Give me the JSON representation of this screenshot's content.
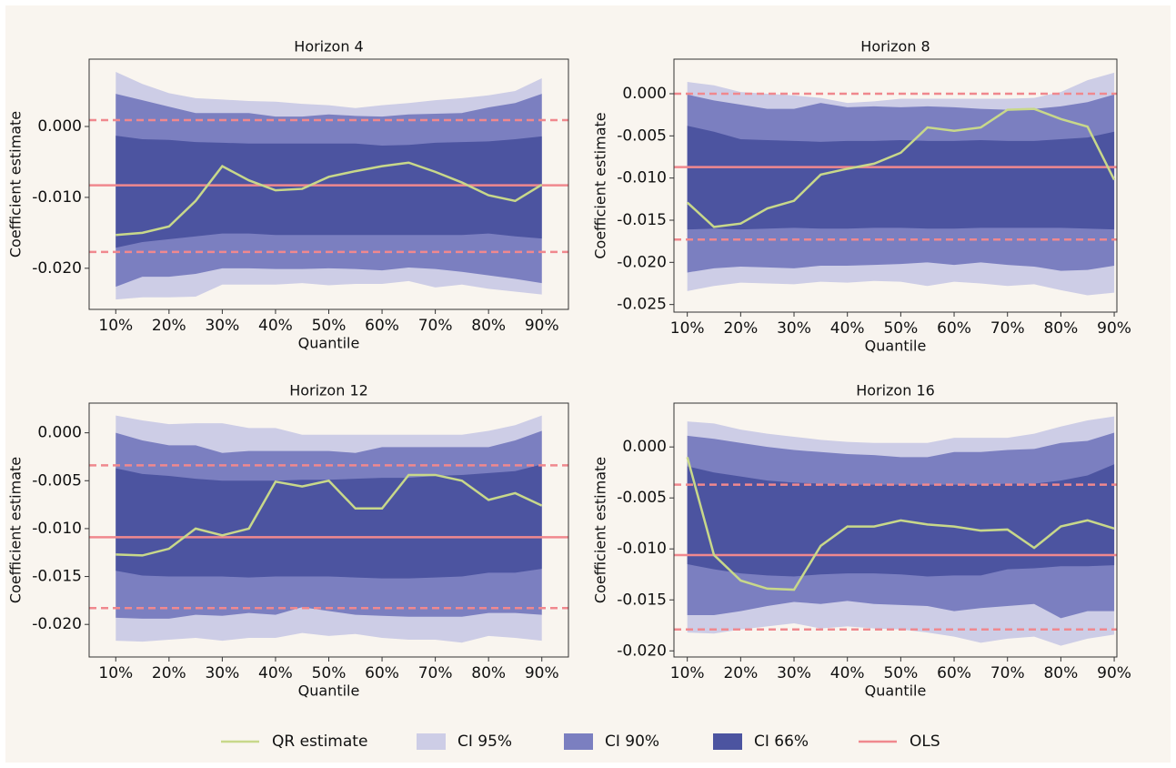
{
  "chart_data": [
    {
      "type": "line",
      "title": "Horizon 4",
      "xlabel": "Quantile",
      "ylabel": "Coefficient estimate",
      "x": [
        10,
        15,
        20,
        25,
        30,
        35,
        40,
        45,
        50,
        55,
        60,
        65,
        70,
        75,
        80,
        85,
        90
      ],
      "xlim": [
        5,
        95
      ],
      "ylim": [
        -0.0258,
        0.0095
      ],
      "xticks": [
        {
          "value": 10,
          "label": "10%"
        },
        {
          "value": 20,
          "label": "20%"
        },
        {
          "value": 30,
          "label": "30%"
        },
        {
          "value": 40,
          "label": "40%"
        },
        {
          "value": 50,
          "label": "50%"
        },
        {
          "value": 60,
          "label": "60%"
        },
        {
          "value": 70,
          "label": "70%"
        },
        {
          "value": 80,
          "label": "80%"
        },
        {
          "value": 90,
          "label": "90%"
        }
      ],
      "yticks": [
        {
          "value": 0,
          "label": "0.000"
        },
        {
          "value": -0.01,
          "label": "-0.010"
        },
        {
          "value": -0.02,
          "label": "-0.020"
        }
      ],
      "series": [
        {
          "name": "QR estimate",
          "color": "#c8d88a",
          "values": [
            -0.0153,
            -0.015,
            -0.0141,
            -0.0105,
            -0.0056,
            -0.0076,
            -0.009,
            -0.0088,
            -0.0071,
            -0.0063,
            -0.0056,
            -0.0051,
            -0.0064,
            -0.0079,
            -0.0097,
            -0.0105,
            -0.0082
          ]
        },
        {
          "name": "CI 95%",
          "color": "#cdcde6",
          "upper": [
            0.0077,
            0.006,
            0.0047,
            0.004,
            0.0038,
            0.0036,
            0.0035,
            0.0032,
            0.003,
            0.0026,
            0.003,
            0.0033,
            0.0037,
            0.004,
            0.0044,
            0.005,
            0.0068
          ],
          "lower": [
            -0.0244,
            -0.0241,
            -0.0241,
            -0.024,
            -0.0223,
            -0.0223,
            -0.0223,
            -0.0221,
            -0.0224,
            -0.0222,
            -0.0222,
            -0.0218,
            -0.0227,
            -0.0223,
            -0.0229,
            -0.0233,
            -0.0237
          ]
        },
        {
          "name": "CI 90%",
          "color": "#7b7fc0",
          "upper": [
            0.0046,
            0.0037,
            0.0028,
            0.0019,
            0.0019,
            0.0019,
            0.0014,
            0.0014,
            0.0017,
            0.0015,
            0.0014,
            0.0017,
            0.0018,
            0.0019,
            0.0027,
            0.0033,
            0.0046
          ],
          "lower": [
            -0.0226,
            -0.0212,
            -0.0212,
            -0.0208,
            -0.02,
            -0.02,
            -0.0201,
            -0.0201,
            -0.02,
            -0.0201,
            -0.0203,
            -0.0199,
            -0.0201,
            -0.0205,
            -0.021,
            -0.0215,
            -0.0221
          ]
        },
        {
          "name": "CI 66%",
          "color": "#4c54a0",
          "upper": [
            -0.0013,
            -0.0018,
            -0.0019,
            -0.0022,
            -0.0023,
            -0.0024,
            -0.0024,
            -0.0024,
            -0.0024,
            -0.0024,
            -0.0027,
            -0.0026,
            -0.0023,
            -0.0022,
            -0.0021,
            -0.0018,
            -0.0014
          ],
          "lower": [
            -0.0171,
            -0.0163,
            -0.0159,
            -0.0155,
            -0.0151,
            -0.0151,
            -0.0153,
            -0.0153,
            -0.0153,
            -0.0153,
            -0.0153,
            -0.0153,
            -0.0153,
            -0.0153,
            -0.0151,
            -0.0155,
            -0.0158
          ]
        },
        {
          "name": "OLS",
          "color": "#f0888e",
          "value": -0.0083,
          "ci": [
            0.0009,
            -0.0177
          ]
        }
      ]
    },
    {
      "type": "line",
      "title": "Horizon 8",
      "xlabel": "Quantile",
      "ylabel": "Coefficient estimate",
      "x": [
        10,
        15,
        20,
        25,
        30,
        35,
        40,
        45,
        50,
        55,
        60,
        65,
        70,
        75,
        80,
        85,
        90
      ],
      "xlim": [
        7.5,
        90.5
      ],
      "ylim": [
        -0.0259,
        0.0041
      ],
      "xticks": [
        {
          "value": 10,
          "label": "10%"
        },
        {
          "value": 20,
          "label": "20%"
        },
        {
          "value": 30,
          "label": "30%"
        },
        {
          "value": 40,
          "label": "40%"
        },
        {
          "value": 50,
          "label": "50%"
        },
        {
          "value": 60,
          "label": "60%"
        },
        {
          "value": 70,
          "label": "70%"
        },
        {
          "value": 80,
          "label": "80%"
        },
        {
          "value": 90,
          "label": "90%"
        }
      ],
      "yticks": [
        {
          "value": 0,
          "label": "0.000"
        },
        {
          "value": -0.005,
          "label": "-0.005"
        },
        {
          "value": -0.01,
          "label": "-0.010"
        },
        {
          "value": -0.015,
          "label": "-0.015"
        },
        {
          "value": -0.02,
          "label": "-0.020"
        },
        {
          "value": -0.025,
          "label": "-0.025"
        }
      ],
      "series": [
        {
          "name": "QR estimate",
          "color": "#c8d88a",
          "values": [
            -0.0129,
            -0.0158,
            -0.0154,
            -0.0136,
            -0.0127,
            -0.0096,
            -0.0089,
            -0.0083,
            -0.007,
            -0.004,
            -0.0044,
            -0.004,
            -0.0019,
            -0.0018,
            -0.003,
            -0.0039,
            -0.0102
          ]
        },
        {
          "name": "CI 95%",
          "color": "#cdcde6",
          "upper": [
            0.0014,
            0.001,
            0.0002,
            0.0,
            -0.0002,
            -0.0005,
            -0.0011,
            -0.0009,
            -0.0006,
            -0.0006,
            -0.0006,
            -0.0006,
            -0.0006,
            -0.0005,
            0.0002,
            0.0016,
            0.0025
          ],
          "lower": [
            -0.0234,
            -0.0228,
            -0.0224,
            -0.0225,
            -0.0226,
            -0.0223,
            -0.0224,
            -0.0222,
            -0.0223,
            -0.0228,
            -0.0223,
            -0.0225,
            -0.0228,
            -0.0226,
            -0.0233,
            -0.0239,
            -0.0236
          ]
        },
        {
          "name": "CI 90%",
          "color": "#7b7fc0",
          "upper": [
            -0.0001,
            -0.0008,
            -0.0013,
            -0.0018,
            -0.0018,
            -0.0011,
            -0.0016,
            -0.0015,
            -0.0016,
            -0.0015,
            -0.0016,
            -0.0018,
            -0.0019,
            -0.0018,
            -0.0015,
            -0.001,
            -0.0001
          ],
          "lower": [
            -0.0212,
            -0.0207,
            -0.0205,
            -0.0206,
            -0.0207,
            -0.0204,
            -0.0204,
            -0.0203,
            -0.0202,
            -0.02,
            -0.0203,
            -0.02,
            -0.0203,
            -0.0205,
            -0.021,
            -0.0209,
            -0.0204
          ]
        },
        {
          "name": "CI 66%",
          "color": "#4c54a0",
          "upper": [
            -0.0038,
            -0.0045,
            -0.0054,
            -0.0055,
            -0.0056,
            -0.0057,
            -0.0056,
            -0.0056,
            -0.0055,
            -0.0056,
            -0.0056,
            -0.0055,
            -0.0056,
            -0.0056,
            -0.0054,
            -0.0052,
            -0.0045
          ],
          "lower": [
            -0.0161,
            -0.016,
            -0.0161,
            -0.016,
            -0.0159,
            -0.016,
            -0.016,
            -0.0159,
            -0.0159,
            -0.016,
            -0.016,
            -0.0159,
            -0.0159,
            -0.0159,
            -0.0159,
            -0.016,
            -0.0161
          ]
        },
        {
          "name": "OLS",
          "color": "#f0888e",
          "value": -0.0087,
          "ci": [
            0.0,
            -0.0173
          ]
        }
      ]
    },
    {
      "type": "line",
      "title": "Horizon 12",
      "xlabel": "Quantile",
      "ylabel": "Coefficient estimate",
      "x": [
        10,
        15,
        20,
        25,
        30,
        35,
        40,
        45,
        50,
        55,
        60,
        65,
        70,
        75,
        80,
        85,
        90
      ],
      "xlim": [
        5,
        95
      ],
      "ylim": [
        -0.0234,
        0.0031
      ],
      "xticks": [
        {
          "value": 10,
          "label": "10%"
        },
        {
          "value": 20,
          "label": "20%"
        },
        {
          "value": 30,
          "label": "30%"
        },
        {
          "value": 40,
          "label": "40%"
        },
        {
          "value": 50,
          "label": "50%"
        },
        {
          "value": 60,
          "label": "60%"
        },
        {
          "value": 70,
          "label": "70%"
        },
        {
          "value": 80,
          "label": "80%"
        },
        {
          "value": 90,
          "label": "90%"
        }
      ],
      "yticks": [
        {
          "value": 0,
          "label": "0.000"
        },
        {
          "value": -0.005,
          "label": "-0.005"
        },
        {
          "value": -0.01,
          "label": "-0.010"
        },
        {
          "value": -0.015,
          "label": "-0.015"
        },
        {
          "value": -0.02,
          "label": "-0.020"
        }
      ],
      "series": [
        {
          "name": "QR estimate",
          "color": "#c8d88a",
          "values": [
            -0.0127,
            -0.0128,
            -0.0121,
            -0.01,
            -0.0107,
            -0.01,
            -0.0051,
            -0.0056,
            -0.005,
            -0.0079,
            -0.0079,
            -0.0044,
            -0.0044,
            -0.005,
            -0.007,
            -0.0063,
            -0.0076
          ]
        },
        {
          "name": "CI 95%",
          "color": "#cdcde6",
          "upper": [
            0.0018,
            0.0013,
            0.0009,
            0.001,
            0.001,
            0.0005,
            0.0005,
            -0.0002,
            -0.0002,
            -0.0002,
            -0.0002,
            -0.0002,
            -0.0002,
            -0.0002,
            0.0002,
            0.0008,
            0.0018
          ],
          "lower": [
            -0.0217,
            -0.0218,
            -0.0216,
            -0.0214,
            -0.0217,
            -0.0214,
            -0.0214,
            -0.0209,
            -0.0212,
            -0.021,
            -0.0214,
            -0.0216,
            -0.0216,
            -0.0219,
            -0.0212,
            -0.0214,
            -0.0217
          ]
        },
        {
          "name": "CI 90%",
          "color": "#7b7fc0",
          "upper": [
            0.0,
            -0.0008,
            -0.0013,
            -0.0013,
            -0.0021,
            -0.0019,
            -0.0019,
            -0.0019,
            -0.0019,
            -0.0021,
            -0.0015,
            -0.0015,
            -0.0015,
            -0.0015,
            -0.0015,
            -0.0008,
            0.0002
          ],
          "lower": [
            -0.0193,
            -0.0194,
            -0.0194,
            -0.019,
            -0.0191,
            -0.0188,
            -0.019,
            -0.0182,
            -0.0186,
            -0.019,
            -0.0191,
            -0.0192,
            -0.0192,
            -0.0192,
            -0.0188,
            -0.0188,
            -0.019
          ]
        },
        {
          "name": "CI 66%",
          "color": "#4c54a0",
          "upper": [
            -0.0037,
            -0.0043,
            -0.0045,
            -0.0048,
            -0.005,
            -0.005,
            -0.005,
            -0.0049,
            -0.0049,
            -0.0048,
            -0.0047,
            -0.0047,
            -0.0045,
            -0.0044,
            -0.0042,
            -0.004,
            -0.0033
          ],
          "lower": [
            -0.0144,
            -0.0149,
            -0.015,
            -0.015,
            -0.015,
            -0.0151,
            -0.015,
            -0.015,
            -0.015,
            -0.0151,
            -0.0152,
            -0.0152,
            -0.0151,
            -0.015,
            -0.0146,
            -0.0146,
            -0.0142
          ]
        },
        {
          "name": "OLS",
          "color": "#f0888e",
          "value": -0.0109,
          "ci": [
            -0.0034,
            -0.0183
          ]
        }
      ]
    },
    {
      "type": "line",
      "title": "Horizon 16",
      "xlabel": "Quantile",
      "ylabel": "Coefficient estimate",
      "x": [
        10,
        15,
        20,
        25,
        30,
        35,
        40,
        45,
        50,
        55,
        60,
        65,
        70,
        75,
        80,
        85,
        90
      ],
      "xlim": [
        7.5,
        90.5
      ],
      "ylim": [
        -0.0206,
        0.0043
      ],
      "xticks": [
        {
          "value": 10,
          "label": "10%"
        },
        {
          "value": 20,
          "label": "20%"
        },
        {
          "value": 30,
          "label": "30%"
        },
        {
          "value": 40,
          "label": "40%"
        },
        {
          "value": 50,
          "label": "50%"
        },
        {
          "value": 60,
          "label": "60%"
        },
        {
          "value": 70,
          "label": "70%"
        },
        {
          "value": 80,
          "label": "80%"
        },
        {
          "value": 90,
          "label": "90%"
        }
      ],
      "yticks": [
        {
          "value": 0,
          "label": "0.000"
        },
        {
          "value": -0.005,
          "label": "-0.005"
        },
        {
          "value": -0.01,
          "label": "-0.010"
        },
        {
          "value": -0.015,
          "label": "-0.015"
        },
        {
          "value": -0.02,
          "label": "-0.020"
        }
      ],
      "series": [
        {
          "name": "QR estimate",
          "color": "#c8d88a",
          "values": [
            -0.001,
            -0.0106,
            -0.0131,
            -0.0139,
            -0.014,
            -0.0097,
            -0.0078,
            -0.0078,
            -0.0072,
            -0.0076,
            -0.0078,
            -0.0082,
            -0.0081,
            -0.0099,
            -0.0078,
            -0.0072,
            -0.008
          ]
        },
        {
          "name": "CI 95%",
          "color": "#cdcde6",
          "upper": [
            0.0025,
            0.0023,
            0.0017,
            0.0013,
            0.001,
            0.0007,
            0.0005,
            0.0004,
            0.0004,
            0.0004,
            0.0009,
            0.0009,
            0.0009,
            0.0013,
            0.002,
            0.0026,
            0.003
          ],
          "lower": [
            -0.0182,
            -0.0183,
            -0.0179,
            -0.0176,
            -0.0173,
            -0.0178,
            -0.0176,
            -0.0178,
            -0.0179,
            -0.0182,
            -0.0186,
            -0.0192,
            -0.0188,
            -0.0186,
            -0.0195,
            -0.0188,
            -0.0184
          ]
        },
        {
          "name": "CI 90%",
          "color": "#7b7fc0",
          "upper": [
            0.0011,
            0.0008,
            0.0004,
            0.0,
            -0.0003,
            -0.0005,
            -0.0007,
            -0.0008,
            -0.001,
            -0.001,
            -0.0005,
            -0.0005,
            -0.0003,
            -0.0002,
            0.0004,
            0.0006,
            0.0014
          ],
          "lower": [
            -0.0165,
            -0.0165,
            -0.0161,
            -0.0156,
            -0.0152,
            -0.0154,
            -0.0151,
            -0.0154,
            -0.0155,
            -0.0156,
            -0.0161,
            -0.0158,
            -0.0156,
            -0.0154,
            -0.0168,
            -0.0161,
            -0.0161
          ]
        },
        {
          "name": "CI 66%",
          "color": "#4c54a0",
          "upper": [
            -0.0019,
            -0.0025,
            -0.0029,
            -0.0033,
            -0.0035,
            -0.0036,
            -0.0037,
            -0.0037,
            -0.0037,
            -0.0037,
            -0.0037,
            -0.0037,
            -0.0036,
            -0.0036,
            -0.0033,
            -0.0028,
            -0.0017
          ],
          "lower": [
            -0.0115,
            -0.012,
            -0.0124,
            -0.0126,
            -0.0127,
            -0.0125,
            -0.0124,
            -0.0124,
            -0.0125,
            -0.0127,
            -0.0126,
            -0.0126,
            -0.012,
            -0.0119,
            -0.0117,
            -0.0117,
            -0.0116
          ]
        },
        {
          "name": "OLS",
          "color": "#f0888e",
          "value": -0.0106,
          "ci": [
            -0.0037,
            -0.0179
          ]
        }
      ]
    }
  ]
}
